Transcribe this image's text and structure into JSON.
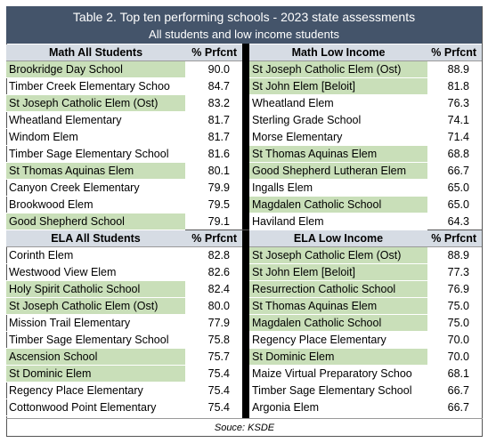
{
  "title": "Table 2. Top ten performing schools - 2023 state assessments",
  "subtitle": "All students and low income students",
  "panels": [
    {
      "heading": "Math All Students",
      "value_heading": "% Prfcnt",
      "rows": [
        {
          "school": "Brookridge Day School",
          "pct": "90.0",
          "highlight": true
        },
        {
          "school": "Timber Creek Elementary Schoo",
          "pct": "84.7",
          "highlight": false
        },
        {
          "school": "St Joseph Catholic Elem (Ost)",
          "pct": "83.2",
          "highlight": true
        },
        {
          "school": "Wheatland Elementary",
          "pct": "81.7",
          "highlight": false
        },
        {
          "school": "Windom Elem",
          "pct": "81.7",
          "highlight": false
        },
        {
          "school": "Timber Sage Elementary School",
          "pct": "81.6",
          "highlight": false
        },
        {
          "school": "St Thomas Aquinas Elem",
          "pct": "80.1",
          "highlight": true
        },
        {
          "school": "Canyon Creek Elementary",
          "pct": "79.9",
          "highlight": false
        },
        {
          "school": "Brookwood Elem",
          "pct": "79.5",
          "highlight": false
        },
        {
          "school": "Good Shepherd School",
          "pct": "79.1",
          "highlight": true
        }
      ]
    },
    {
      "heading": "Math Low Income",
      "value_heading": "% Prfcnt",
      "rows": [
        {
          "school": "St Joseph Catholic Elem (Ost)",
          "pct": "88.9",
          "highlight": true
        },
        {
          "school": "St John Elem [Beloit]",
          "pct": "81.8",
          "highlight": true
        },
        {
          "school": "Wheatland Elem",
          "pct": "76.3",
          "highlight": false
        },
        {
          "school": "Sterling Grade School",
          "pct": "74.1",
          "highlight": false
        },
        {
          "school": "Morse Elementary",
          "pct": "71.4",
          "highlight": false
        },
        {
          "school": "St Thomas Aquinas Elem",
          "pct": "68.8",
          "highlight": true
        },
        {
          "school": "Good Shepherd Lutheran Elem",
          "pct": "66.7",
          "highlight": true
        },
        {
          "school": "Ingalls Elem",
          "pct": "65.0",
          "highlight": false
        },
        {
          "school": "Magdalen Catholic School",
          "pct": "65.0",
          "highlight": true
        },
        {
          "school": "Haviland Elem",
          "pct": "64.3",
          "highlight": false
        }
      ]
    },
    {
      "heading": "ELA All Students",
      "value_heading": "% Prfcnt",
      "rows": [
        {
          "school": "Corinth Elem",
          "pct": "82.8",
          "highlight": false
        },
        {
          "school": "Westwood View Elem",
          "pct": "82.6",
          "highlight": false
        },
        {
          "school": "Holy Spirit Catholic School",
          "pct": "82.4",
          "highlight": true
        },
        {
          "school": "St Joseph Catholic Elem (Ost)",
          "pct": "80.0",
          "highlight": true
        },
        {
          "school": "Mission Trail Elementary",
          "pct": "77.9",
          "highlight": false
        },
        {
          "school": "Timber Sage Elementary School",
          "pct": "75.8",
          "highlight": false
        },
        {
          "school": "Ascension School",
          "pct": "75.7",
          "highlight": true
        },
        {
          "school": "St Dominic Elem",
          "pct": "75.4",
          "highlight": true
        },
        {
          "school": "Regency Place Elementary",
          "pct": "75.4",
          "highlight": false
        },
        {
          "school": "Cottonwood Point Elementary",
          "pct": "75.4",
          "highlight": false
        }
      ]
    },
    {
      "heading": "ELA Low Income",
      "value_heading": "% Prfcnt",
      "rows": [
        {
          "school": "St Joseph Catholic Elem (Ost)",
          "pct": "88.9",
          "highlight": true
        },
        {
          "school": "St John Elem [Beloit]",
          "pct": "77.3",
          "highlight": true
        },
        {
          "school": "Resurrection Catholic School",
          "pct": "76.9",
          "highlight": true
        },
        {
          "school": "St Thomas Aquinas Elem",
          "pct": "75.0",
          "highlight": true
        },
        {
          "school": "Magdalen Catholic School",
          "pct": "75.0",
          "highlight": true
        },
        {
          "school": "Regency Place Elementary",
          "pct": "70.0",
          "highlight": false
        },
        {
          "school": "St Dominic Elem",
          "pct": "70.0",
          "highlight": true
        },
        {
          "school": "Maize Virtual Preparatory Schoo",
          "pct": "68.1",
          "highlight": false
        },
        {
          "school": "Timber Sage Elementary School",
          "pct": "66.7",
          "highlight": false
        },
        {
          "school": "Argonia Elem",
          "pct": "66.7",
          "highlight": false
        }
      ]
    }
  ],
  "source": "Souce: KSDE"
}
